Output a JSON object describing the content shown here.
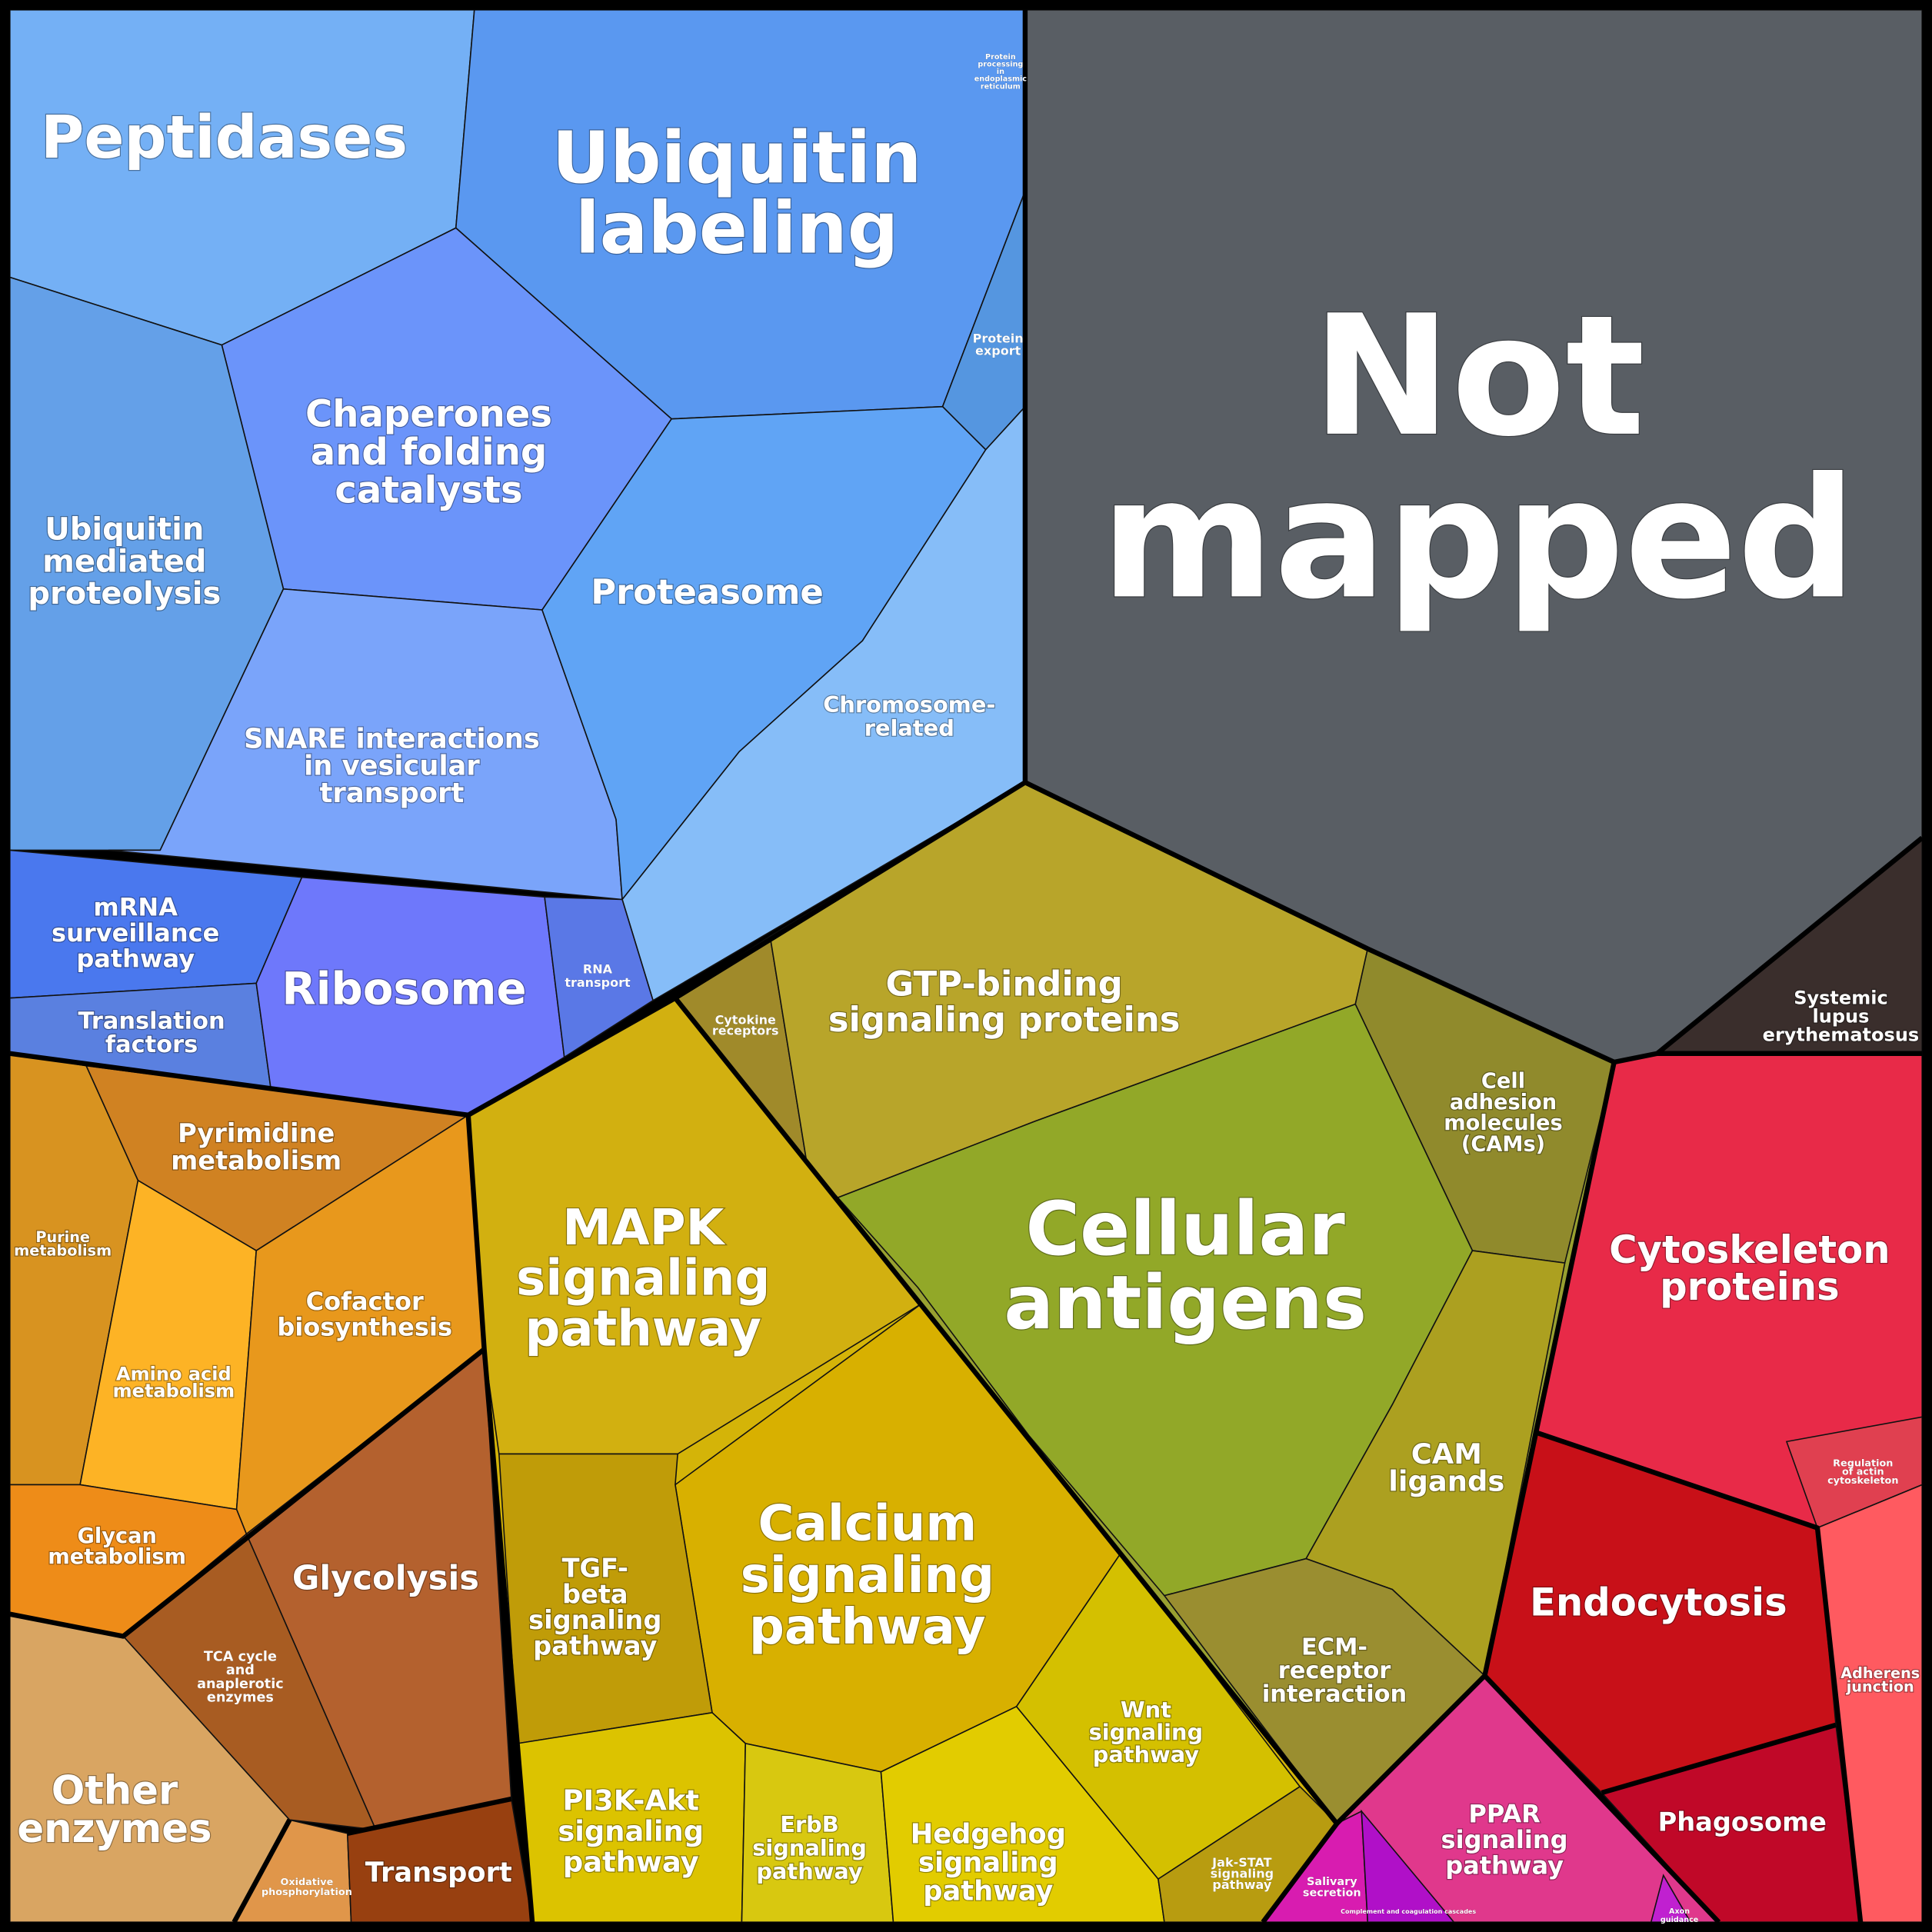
{
  "regions": [
    {
      "label": [
        "Peptidases"
      ]
    },
    {
      "label": [
        "Ubiquitin",
        "labeling"
      ]
    },
    {
      "label": [
        "Protein",
        "processing",
        "in",
        "endoplasmic",
        "reticulum"
      ]
    },
    {
      "label": [
        "Protein",
        "export"
      ]
    },
    {
      "label": [
        "Chaperones",
        "and folding",
        "catalysts"
      ]
    },
    {
      "label": [
        "Ubiquitin",
        "mediated",
        "proteolysis"
      ]
    },
    {
      "label": [
        "Proteasome"
      ]
    },
    {
      "label": [
        "Chromosome-",
        "related"
      ]
    },
    {
      "label": [
        "SNARE interactions",
        "in vesicular",
        "transport"
      ]
    },
    {
      "label": [
        "mRNA",
        "surveillance",
        "pathway"
      ]
    },
    {
      "label": [
        "Ribosome"
      ]
    },
    {
      "label": [
        "RNA",
        "transport"
      ]
    },
    {
      "label": [
        "Translation",
        "factors"
      ]
    },
    {
      "label": [
        "Not",
        "mapped"
      ]
    },
    {
      "label": [
        "Systemic",
        "lupus",
        "erythematosus"
      ]
    },
    {
      "label": [
        "GTP-binding",
        "signaling proteins"
      ]
    },
    {
      "label": [
        "Cytokine",
        "receptors"
      ]
    },
    {
      "label": [
        "Cell",
        "adhesion",
        "molecules",
        "(CAMs)"
      ]
    },
    {
      "label": [
        "Cellular",
        "antigens"
      ]
    },
    {
      "label": [
        "CAM",
        "ligands"
      ]
    },
    {
      "label": [
        "ECM-",
        "receptor",
        "interaction"
      ]
    },
    {
      "label": [
        "Pyrimidine",
        "metabolism"
      ]
    },
    {
      "label": [
        "Purine",
        "metabolism"
      ]
    },
    {
      "label": [
        "Cofactor",
        "biosynthesis"
      ]
    },
    {
      "label": [
        "Amino acid",
        "metabolism"
      ]
    },
    {
      "label": [
        "Glycan",
        "metabolism"
      ]
    },
    {
      "label": [
        "Glycolysis"
      ]
    },
    {
      "label": [
        "TCA cycle",
        "and",
        "anaplerotic",
        "enzymes"
      ]
    },
    {
      "label": [
        "Other",
        "enzymes"
      ]
    },
    {
      "label": [
        "Oxidative",
        "phosphorylation"
      ]
    },
    {
      "label": [
        "Transport"
      ]
    },
    {
      "label": [
        "MAPK",
        "signaling",
        "pathway"
      ]
    },
    {
      "label": [
        "TGF-",
        "beta",
        "signaling",
        "pathway"
      ]
    },
    {
      "label": [
        "Calcium",
        "signaling",
        "pathway"
      ]
    },
    {
      "label": [
        "Wnt",
        "signaling",
        "pathway"
      ]
    },
    {
      "label": [
        "PI3K-Akt",
        "signaling",
        "pathway"
      ]
    },
    {
      "label": [
        "ErbB",
        "signaling",
        "pathway"
      ]
    },
    {
      "label": [
        "Hedgehog",
        "signaling",
        "pathway"
      ]
    },
    {
      "label": [
        "Jak-STAT",
        "signaling",
        "pathway"
      ]
    },
    {
      "label": [
        "Cytoskeleton",
        "proteins"
      ]
    },
    {
      "label": [
        "Regulation",
        "of actin",
        "cytoskeleton"
      ]
    },
    {
      "label": [
        "Endocytosis"
      ]
    },
    {
      "label": [
        "Adherens",
        "junction"
      ]
    },
    {
      "label": [
        "Phagosome"
      ]
    },
    {
      "label": [
        "PPAR",
        "signaling",
        "pathway"
      ]
    },
    {
      "label": [
        "Salivary",
        "secretion"
      ]
    },
    {
      "label": [
        "Complement and coagulation cascades"
      ]
    },
    {
      "label": [
        "Axon",
        "guidance"
      ]
    }
  ]
}
